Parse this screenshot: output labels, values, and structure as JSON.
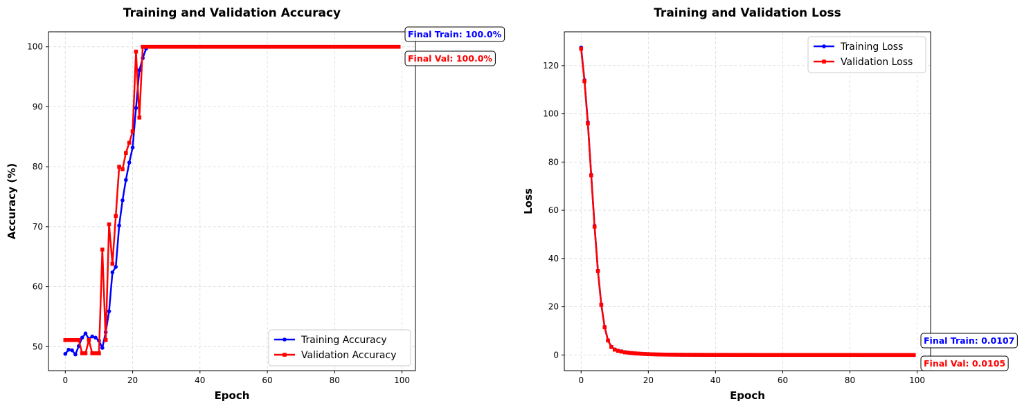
{
  "chart_data": [
    {
      "type": "line",
      "title": "Training and Validation Accuracy",
      "xlabel": "Epoch",
      "ylabel": "Accuracy (%)",
      "xlim": [
        -5,
        104
      ],
      "ylim": [
        46,
        102.5
      ],
      "xticks": [
        0,
        20,
        40,
        60,
        80,
        100
      ],
      "yticks": [
        50,
        60,
        70,
        80,
        90,
        100
      ],
      "grid": true,
      "legend_position": "bottom-right",
      "x_count": 100,
      "series": [
        {
          "name": "Training Accuracy",
          "color": "#0000ff",
          "marker": "circle",
          "values": [
            48.8,
            49.5,
            49.4,
            48.7,
            50.1,
            51.5,
            52.2,
            51.3,
            51.7,
            51.5,
            51.0,
            49.8,
            52.4,
            55.9,
            62.4,
            63.3,
            70.2,
            74.4,
            77.8,
            80.7,
            83.2,
            89.8,
            96.1,
            98.1,
            99.7,
            100,
            100,
            100,
            100,
            100,
            100,
            100,
            100,
            100,
            100,
            100,
            100,
            100,
            100,
            100,
            100,
            100,
            100,
            100,
            100,
            100,
            100,
            100,
            100,
            100,
            100,
            100,
            100,
            100,
            100,
            100,
            100,
            100,
            100,
            100,
            100,
            100,
            100,
            100,
            100,
            100,
            100,
            100,
            100,
            100,
            100,
            100,
            100,
            100,
            100,
            100,
            100,
            100,
            100,
            100,
            100,
            100,
            100,
            100,
            100,
            100,
            100,
            100,
            100,
            100,
            100,
            100,
            100,
            100,
            100,
            100,
            100,
            100,
            100,
            100
          ]
        },
        {
          "name": "Validation Accuracy",
          "color": "#ff0000",
          "marker": "square",
          "values": [
            51.1,
            51.1,
            51.1,
            51.1,
            51.1,
            48.9,
            48.9,
            51.1,
            48.9,
            48.9,
            48.9,
            66.2,
            51.1,
            70.4,
            63.8,
            71.8,
            80.0,
            79.6,
            82.3,
            84.0,
            85.9,
            99.2,
            88.2,
            100,
            100,
            100,
            100,
            100,
            100,
            100,
            100,
            100,
            100,
            100,
            100,
            100,
            100,
            100,
            100,
            100,
            100,
            100,
            100,
            100,
            100,
            100,
            100,
            100,
            100,
            100,
            100,
            100,
            100,
            100,
            100,
            100,
            100,
            100,
            100,
            100,
            100,
            100,
            100,
            100,
            100,
            100,
            100,
            100,
            100,
            100,
            100,
            100,
            100,
            100,
            100,
            100,
            100,
            100,
            100,
            100,
            100,
            100,
            100,
            100,
            100,
            100,
            100,
            100,
            100,
            100,
            100,
            100,
            100,
            100,
            100,
            100,
            100,
            100,
            100,
            100
          ]
        }
      ],
      "annotations": [
        {
          "text": "Final Train: 100.0%",
          "color": "#0000ff"
        },
        {
          "text": "Final Val: 100.0%",
          "color": "#ff0000"
        }
      ]
    },
    {
      "type": "line",
      "title": "Training and Validation Loss",
      "xlabel": "Epoch",
      "ylabel": "Loss",
      "xlim": [
        -5,
        104
      ],
      "ylim": [
        -6.5,
        134
      ],
      "xticks": [
        0,
        20,
        40,
        60,
        80,
        100
      ],
      "yticks": [
        0,
        20,
        40,
        60,
        80,
        100,
        120
      ],
      "grid": true,
      "legend_position": "top-right",
      "x_count": 100,
      "series": [
        {
          "name": "Training Loss",
          "color": "#0000ff",
          "marker": "circle",
          "values": [
            127.5,
            114.0,
            96.5,
            74.8,
            53.6,
            35.0,
            21.0,
            11.7,
            6.1,
            3.4,
            2.3,
            1.8,
            1.5,
            1.2,
            1.0,
            0.85,
            0.7,
            0.6,
            0.5,
            0.42,
            0.36,
            0.3,
            0.26,
            0.22,
            0.19,
            0.17,
            0.15,
            0.14,
            0.12,
            0.11,
            0.1,
            0.09,
            0.08,
            0.08,
            0.07,
            0.07,
            0.06,
            0.06,
            0.05,
            0.05,
            0.05,
            0.05,
            0.04,
            0.04,
            0.04,
            0.04,
            0.04,
            0.03,
            0.03,
            0.03,
            0.03,
            0.03,
            0.03,
            0.03,
            0.03,
            0.02,
            0.02,
            0.02,
            0.02,
            0.02,
            0.02,
            0.02,
            0.02,
            0.02,
            0.02,
            0.02,
            0.02,
            0.02,
            0.02,
            0.02,
            0.02,
            0.02,
            0.02,
            0.02,
            0.02,
            0.02,
            0.02,
            0.02,
            0.02,
            0.02,
            0.02,
            0.02,
            0.02,
            0.02,
            0.01,
            0.01,
            0.01,
            0.01,
            0.01,
            0.01,
            0.01,
            0.01,
            0.01,
            0.01,
            0.01,
            0.01,
            0.01,
            0.01,
            0.01,
            0.0107
          ]
        },
        {
          "name": "Validation Loss",
          "color": "#ff0000",
          "marker": "square",
          "values": [
            127.0,
            113.5,
            96.0,
            74.5,
            53.2,
            34.8,
            20.8,
            11.5,
            6.0,
            3.3,
            2.2,
            1.7,
            1.4,
            1.1,
            0.95,
            0.8,
            0.68,
            0.58,
            0.48,
            0.4,
            0.34,
            0.29,
            0.25,
            0.21,
            0.18,
            0.16,
            0.14,
            0.13,
            0.12,
            0.1,
            0.09,
            0.08,
            0.08,
            0.07,
            0.07,
            0.06,
            0.06,
            0.05,
            0.05,
            0.05,
            0.04,
            0.04,
            0.04,
            0.04,
            0.04,
            0.03,
            0.03,
            0.03,
            0.03,
            0.03,
            0.03,
            0.03,
            0.02,
            0.02,
            0.02,
            0.02,
            0.02,
            0.02,
            0.02,
            0.02,
            0.02,
            0.02,
            0.02,
            0.02,
            0.02,
            0.02,
            0.02,
            0.02,
            0.02,
            0.02,
            0.02,
            0.02,
            0.02,
            0.02,
            0.02,
            0.02,
            0.02,
            0.02,
            0.02,
            0.02,
            0.02,
            0.02,
            0.02,
            0.01,
            0.01,
            0.01,
            0.01,
            0.01,
            0.01,
            0.01,
            0.01,
            0.01,
            0.01,
            0.01,
            0.01,
            0.01,
            0.01,
            0.01,
            0.01,
            0.0105
          ]
        }
      ],
      "annotations": [
        {
          "text": "Final Train: 0.0107",
          "color": "#0000ff"
        },
        {
          "text": "Final Val: 0.0105",
          "color": "#ff0000"
        }
      ]
    }
  ]
}
